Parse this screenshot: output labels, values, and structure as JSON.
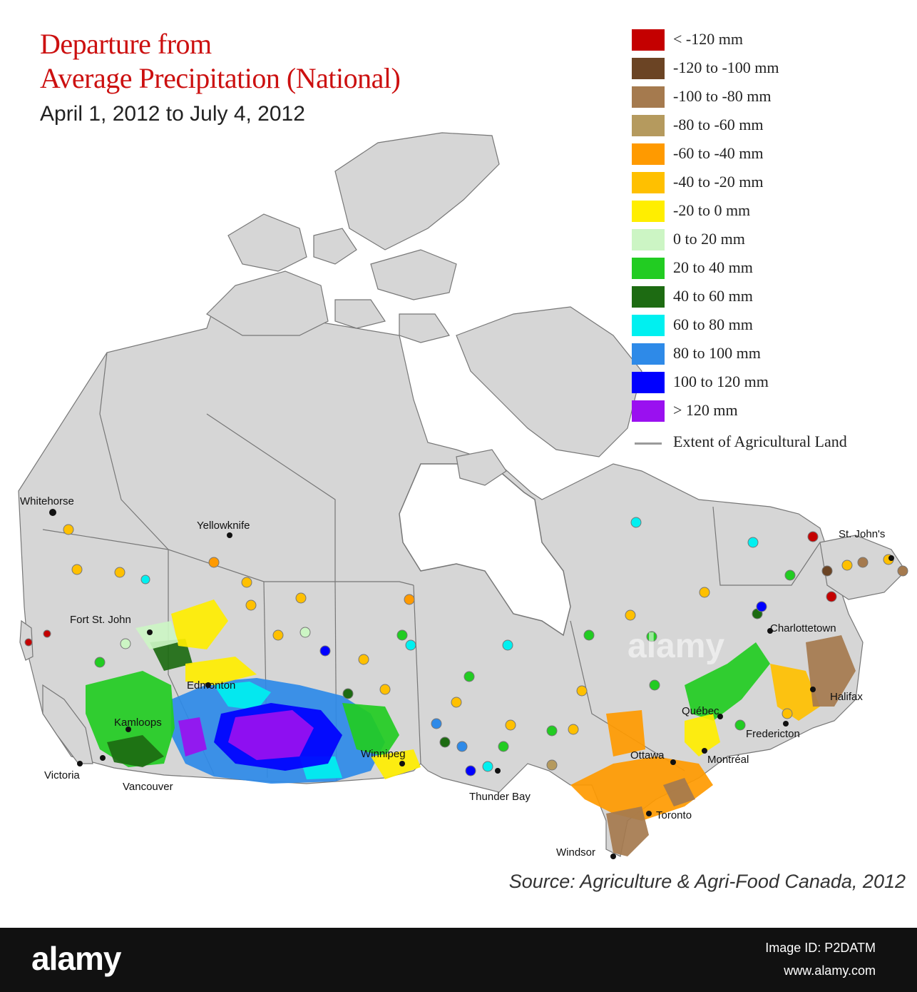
{
  "title_line1": "Departure from",
  "title_line2": "Average Precipitation (National)",
  "subtitle": "April 1, 2012 to July 4, 2012",
  "legend": [
    {
      "label": "< -120 mm",
      "color": "#c40000"
    },
    {
      "label": "-120 to -100 mm",
      "color": "#6b4424"
    },
    {
      "label": "-100 to -80 mm",
      "color": "#a57a4e"
    },
    {
      "label": "-80 to -60 mm",
      "color": "#b59a5e"
    },
    {
      "label": "-60 to -40 mm",
      "color": "#ff9a00"
    },
    {
      "label": "-40 to -20 mm",
      "color": "#ffc000"
    },
    {
      "label": "-20 to 0 mm",
      "color": "#ffee00"
    },
    {
      "label": "0 to 20 mm",
      "color": "#ccf5c4"
    },
    {
      "label": "20 to 40 mm",
      "color": "#22cc22"
    },
    {
      "label": "40 to 60 mm",
      "color": "#1d6b12"
    },
    {
      "label": "60 to 80 mm",
      "color": "#00f0f0"
    },
    {
      "label": "80 to 100 mm",
      "color": "#2e8ae8"
    },
    {
      "label": "100 to 120 mm",
      "color": "#0000ff"
    },
    {
      "label": "> 120 mm",
      "color": "#9a10f0"
    }
  ],
  "extent_label": "Extent of Agricultural Land",
  "extent_color": "#9a9a9a",
  "land_color": "#d6d6d6",
  "border_color": "#777777",
  "cities": [
    {
      "name": "Whitehorse"
    },
    {
      "name": "Yellowknife"
    },
    {
      "name": "Fort St. John"
    },
    {
      "name": "Edmonton"
    },
    {
      "name": "Kamloops"
    },
    {
      "name": "Victoria"
    },
    {
      "name": "Vancouver"
    },
    {
      "name": "Winnipeg"
    },
    {
      "name": "Thunder Bay"
    },
    {
      "name": "Ottawa"
    },
    {
      "name": "Montréal"
    },
    {
      "name": "Québec"
    },
    {
      "name": "Toronto"
    },
    {
      "name": "Windsor"
    },
    {
      "name": "Fredericton"
    },
    {
      "name": "Halifax"
    },
    {
      "name": "Charlottetown"
    },
    {
      "name": "St. John's"
    }
  ],
  "source": "Source: Agriculture & Agri-Food Canada, 2012",
  "stock": {
    "logo": "alamy",
    "watermark": "alamy",
    "image_id": "Image ID: P2DATM",
    "url": "www.alamy.com"
  }
}
